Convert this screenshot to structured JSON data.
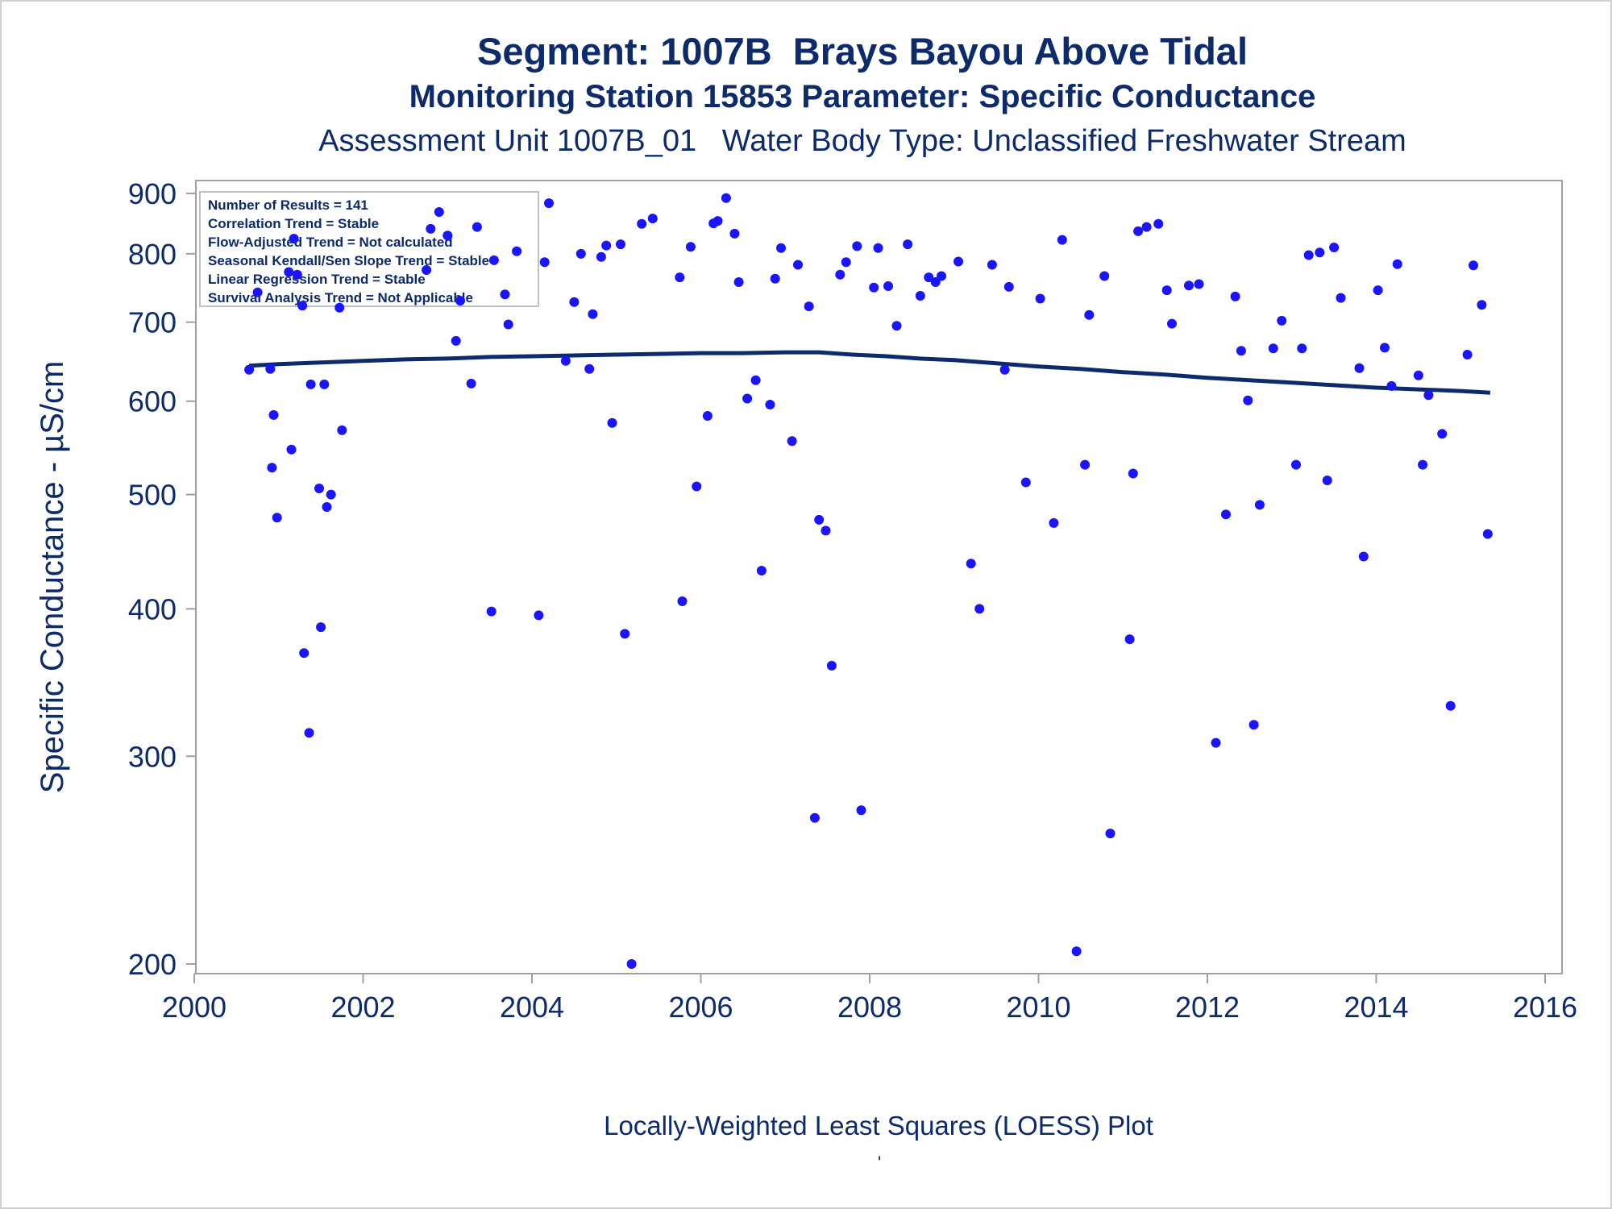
{
  "titles": {
    "line1": "Segment: 1007B  Brays Bayou Above Tidal",
    "line2": "Monitoring Station 15853 Parameter: Specific Conductance",
    "line3": "Assessment Unit 1007B_01   Water Body Type: Unclassified Freshwater Stream"
  },
  "footnote": "Locally-Weighted Least Squares (LOESS) Plot",
  "footnote_mark": "'",
  "stats_box": [
    "Number of Results = 141",
    "Correlation Trend = Stable",
    "Flow-Adjusted Trend = Not calculated",
    "Seasonal Kendall/Sen Slope Trend = Stable",
    "Linear Regression Trend = Stable",
    "Survival Analysis Trend = Not Applicable"
  ],
  "colors": {
    "points": "#1a14ff",
    "loess_line": "#0d2a6b",
    "text": "#0d2a6b",
    "frame": "#a0a0a0"
  },
  "chart_data": {
    "type": "scatter",
    "title": "Segment: 1007B  Brays Bayou Above Tidal",
    "xlabel": "",
    "ylabel": "Specific Conductance -  µS/cm",
    "xlim": [
      2000,
      2016
    ],
    "ylim": [
      200,
      900
    ],
    "yscale": "log",
    "x_ticks": [
      2000,
      2002,
      2004,
      2006,
      2008,
      2010,
      2012,
      2014,
      2016
    ],
    "y_ticks": [
      200,
      300,
      400,
      500,
      600,
      700,
      800,
      900
    ],
    "grid": false,
    "series": [
      {
        "type": "scatter",
        "points": [
          [
            2000.65,
            638
          ],
          [
            2000.75,
            742
          ],
          [
            2000.9,
            639
          ],
          [
            2000.92,
            527
          ],
          [
            2000.94,
            584
          ],
          [
            2000.98,
            478
          ],
          [
            2001.15,
            546
          ],
          [
            2001.12,
            772
          ],
          [
            2001.18,
            824
          ],
          [
            2001.22,
            768
          ],
          [
            2001.28,
            723
          ],
          [
            2001.3,
            367
          ],
          [
            2001.36,
            314
          ],
          [
            2001.38,
            620
          ],
          [
            2001.48,
            506
          ],
          [
            2001.5,
            386
          ],
          [
            2001.54,
            620
          ],
          [
            2001.57,
            488
          ],
          [
            2001.62,
            500
          ],
          [
            2001.72,
            720
          ],
          [
            2001.75,
            567
          ],
          [
            2002.75,
            775
          ],
          [
            2002.8,
            840
          ],
          [
            2002.9,
            868
          ],
          [
            2003.0,
            829
          ],
          [
            2003.1,
            675
          ],
          [
            2003.15,
            730
          ],
          [
            2003.28,
            621
          ],
          [
            2003.35,
            843
          ],
          [
            2003.52,
            398
          ],
          [
            2003.55,
            790
          ],
          [
            2003.68,
            739
          ],
          [
            2003.72,
            697
          ],
          [
            2003.82,
            804
          ],
          [
            2004.08,
            395
          ],
          [
            2004.15,
            787
          ],
          [
            2004.2,
            883
          ],
          [
            2004.4,
            649
          ],
          [
            2004.5,
            728
          ],
          [
            2004.58,
            800
          ],
          [
            2004.68,
            639
          ],
          [
            2004.72,
            711
          ],
          [
            2004.82,
            795
          ],
          [
            2004.88,
            813
          ],
          [
            2004.95,
            575
          ],
          [
            2005.05,
            815
          ],
          [
            2005.1,
            381
          ],
          [
            2005.18,
            200
          ],
          [
            2005.3,
            848
          ],
          [
            2005.43,
            857
          ],
          [
            2005.75,
            764
          ],
          [
            2005.78,
            406
          ],
          [
            2005.88,
            811
          ],
          [
            2005.95,
            508
          ],
          [
            2006.08,
            583
          ],
          [
            2006.15,
            849
          ],
          [
            2006.2,
            853
          ],
          [
            2006.3,
            892
          ],
          [
            2006.4,
            832
          ],
          [
            2006.45,
            757
          ],
          [
            2006.55,
            603
          ],
          [
            2006.65,
            625
          ],
          [
            2006.72,
            431
          ],
          [
            2006.82,
            596
          ],
          [
            2006.88,
            762
          ],
          [
            2006.95,
            809
          ],
          [
            2007.08,
            555
          ],
          [
            2007.15,
            783
          ],
          [
            2007.28,
            722
          ],
          [
            2007.35,
            266
          ],
          [
            2007.4,
            476
          ],
          [
            2007.48,
            466
          ],
          [
            2007.55,
            358
          ],
          [
            2007.65,
            768
          ],
          [
            2007.72,
            787
          ],
          [
            2007.85,
            812
          ],
          [
            2007.9,
            270
          ],
          [
            2008.05,
            749
          ],
          [
            2008.1,
            809
          ],
          [
            2008.22,
            751
          ],
          [
            2008.32,
            695
          ],
          [
            2008.45,
            815
          ],
          [
            2008.6,
            737
          ],
          [
            2008.7,
            764
          ],
          [
            2008.78,
            757
          ],
          [
            2008.85,
            766
          ],
          [
            2009.05,
            788
          ],
          [
            2009.2,
            437
          ],
          [
            2009.3,
            400
          ],
          [
            2009.45,
            783
          ],
          [
            2009.6,
            638
          ],
          [
            2009.65,
            750
          ],
          [
            2009.85,
            512
          ],
          [
            2010.02,
            733
          ],
          [
            2010.18,
            473
          ],
          [
            2010.28,
            822
          ],
          [
            2010.45,
            205
          ],
          [
            2010.55,
            530
          ],
          [
            2010.6,
            710
          ],
          [
            2010.78,
            766
          ],
          [
            2010.85,
            258
          ],
          [
            2011.08,
            377
          ],
          [
            2011.12,
            521
          ],
          [
            2011.18,
            836
          ],
          [
            2011.28,
            843
          ],
          [
            2011.42,
            848
          ],
          [
            2011.52,
            745
          ],
          [
            2011.58,
            698
          ],
          [
            2011.78,
            752
          ],
          [
            2011.9,
            754
          ],
          [
            2012.1,
            308
          ],
          [
            2012.22,
            481
          ],
          [
            2012.33,
            736
          ],
          [
            2012.4,
            662
          ],
          [
            2012.48,
            601
          ],
          [
            2012.55,
            319
          ],
          [
            2012.62,
            490
          ],
          [
            2012.78,
            665
          ],
          [
            2012.88,
            702
          ],
          [
            2013.05,
            530
          ],
          [
            2013.12,
            665
          ],
          [
            2013.2,
            798
          ],
          [
            2013.33,
            802
          ],
          [
            2013.42,
            514
          ],
          [
            2013.5,
            810
          ],
          [
            2013.58,
            734
          ],
          [
            2013.8,
            640
          ],
          [
            2013.85,
            443
          ],
          [
            2014.02,
            745
          ],
          [
            2014.1,
            666
          ],
          [
            2014.18,
            618
          ],
          [
            2014.25,
            784
          ],
          [
            2014.5,
            631
          ],
          [
            2014.55,
            530
          ],
          [
            2014.62,
            607
          ],
          [
            2014.78,
            563
          ],
          [
            2014.88,
            331
          ],
          [
            2015.08,
            657
          ],
          [
            2015.15,
            782
          ],
          [
            2015.25,
            724
          ],
          [
            2015.32,
            463
          ]
        ]
      },
      {
        "type": "line",
        "name": "LOESS",
        "points": [
          [
            2000.65,
            643
          ],
          [
            2001.0,
            645
          ],
          [
            2001.5,
            647
          ],
          [
            2002.0,
            649
          ],
          [
            2002.5,
            651
          ],
          [
            2003.0,
            652
          ],
          [
            2003.5,
            654
          ],
          [
            2004.0,
            655
          ],
          [
            2004.5,
            656
          ],
          [
            2005.0,
            657
          ],
          [
            2005.5,
            658
          ],
          [
            2006.0,
            659
          ],
          [
            2006.5,
            659
          ],
          [
            2007.0,
            660
          ],
          [
            2007.4,
            660
          ],
          [
            2007.8,
            657
          ],
          [
            2008.2,
            655
          ],
          [
            2008.6,
            652
          ],
          [
            2009.0,
            650
          ],
          [
            2009.5,
            646
          ],
          [
            2010.0,
            642
          ],
          [
            2010.5,
            639
          ],
          [
            2011.0,
            635
          ],
          [
            2011.5,
            632
          ],
          [
            2012.0,
            628
          ],
          [
            2012.5,
            625
          ],
          [
            2013.0,
            622
          ],
          [
            2013.5,
            619
          ],
          [
            2014.0,
            616
          ],
          [
            2014.5,
            614
          ],
          [
            2015.0,
            612
          ],
          [
            2015.35,
            610
          ]
        ]
      }
    ]
  }
}
